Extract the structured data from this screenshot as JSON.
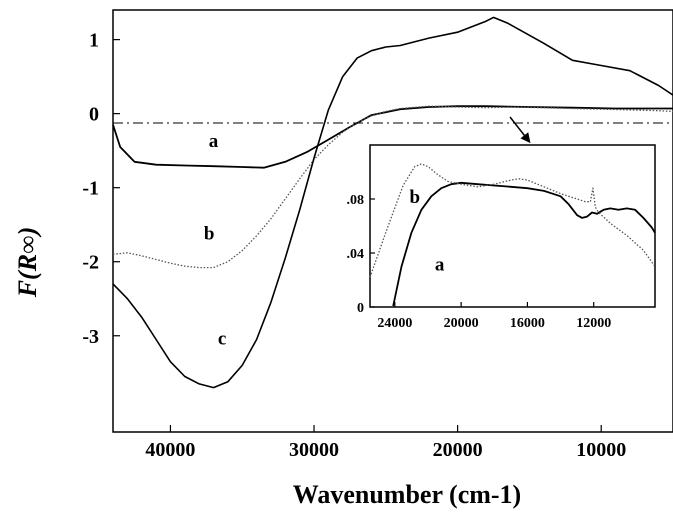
{
  "chart_data": [
    {
      "type": "line",
      "title": "",
      "xlabel": "Wavenumber (cm-1)",
      "ylabel": "F(R∞)",
      "xlim": [
        44000,
        5000
      ],
      "ylim": [
        -4.3,
        1.4
      ],
      "x_reversed": true,
      "xticks": [
        {
          "value": 40000,
          "label": "40000"
        },
        {
          "value": 30000,
          "label": "30000"
        },
        {
          "value": 20000,
          "label": "20000"
        },
        {
          "value": 10000,
          "label": "10000"
        }
      ],
      "yticks": [
        {
          "value": 1,
          "label": "1"
        },
        {
          "value": 0,
          "label": "0"
        },
        {
          "value": -1,
          "label": "-1"
        },
        {
          "value": -2,
          "label": "-2"
        },
        {
          "value": -3,
          "label": "-3"
        }
      ],
      "reference_line": {
        "y": 0,
        "style": "dash-dot"
      },
      "series": [
        {
          "name": "a",
          "style": "solid",
          "color": "#000000",
          "x": [
            44000,
            43500,
            42500,
            41000,
            39000,
            37000,
            35000,
            33500,
            32000,
            30500,
            29000,
            27500,
            26000,
            24000,
            22000,
            20000,
            18000,
            15000,
            12000,
            9000,
            6000,
            5000
          ],
          "y": [
            -0.15,
            -0.45,
            -0.65,
            -0.69,
            -0.7,
            -0.71,
            -0.72,
            -0.73,
            -0.65,
            -0.52,
            -0.35,
            -0.18,
            -0.02,
            0.06,
            0.09,
            0.1,
            0.1,
            0.09,
            0.08,
            0.07,
            0.07,
            0.07
          ]
        },
        {
          "name": "b",
          "style": "dotted",
          "color": "#555555",
          "x": [
            44000,
            43000,
            42000,
            41000,
            40000,
            39000,
            38000,
            37000,
            36000,
            35000,
            34000,
            33000,
            32000,
            31000,
            30000,
            29000,
            28000,
            27000,
            26000,
            25000,
            24000,
            22000,
            20000,
            18000,
            16000,
            14000,
            12000,
            10000,
            8000,
            6000,
            5000
          ],
          "y": [
            -1.9,
            -1.88,
            -1.92,
            -1.97,
            -2.02,
            -2.06,
            -2.08,
            -2.08,
            -2.0,
            -1.85,
            -1.65,
            -1.42,
            -1.15,
            -0.88,
            -0.62,
            -0.42,
            -0.25,
            -0.12,
            -0.03,
            0.03,
            0.07,
            0.1,
            0.09,
            0.08,
            0.09,
            0.08,
            0.07,
            0.06,
            0.05,
            0.04,
            0.03
          ]
        },
        {
          "name": "c",
          "style": "solid-noisy",
          "color": "#000000",
          "x": [
            44000,
            43000,
            42000,
            41000,
            40000,
            39000,
            38000,
            37000,
            36000,
            35000,
            34000,
            33000,
            32000,
            31000,
            30000,
            29000,
            28000,
            27000,
            26000,
            25000,
            24000,
            22000,
            20000,
            18000,
            17500,
            16500,
            14000,
            12000,
            10000,
            8000,
            6000,
            5000
          ],
          "y": [
            -2.3,
            -2.5,
            -2.75,
            -3.05,
            -3.35,
            -3.55,
            -3.65,
            -3.7,
            -3.62,
            -3.4,
            -3.05,
            -2.55,
            -1.95,
            -1.3,
            -0.6,
            0.05,
            0.5,
            0.75,
            0.85,
            0.9,
            0.92,
            1.02,
            1.1,
            1.25,
            1.3,
            1.22,
            0.95,
            0.72,
            0.65,
            0.58,
            0.38,
            0.25
          ]
        }
      ],
      "series_labels": [
        {
          "text": "a",
          "x": 37000,
          "y": -0.45
        },
        {
          "text": "b",
          "x": 37300,
          "y": -1.7
        },
        {
          "text": "c",
          "x": 36400,
          "y": -3.12
        }
      ]
    },
    {
      "type": "line",
      "title": "",
      "inset": true,
      "xlim": [
        25500,
        8300
      ],
      "ylim": [
        0,
        0.12
      ],
      "x_reversed": true,
      "xticks": [
        {
          "value": 24000,
          "label": "24000"
        },
        {
          "value": 20000,
          "label": "20000"
        },
        {
          "value": 16000,
          "label": "16000"
        },
        {
          "value": 12000,
          "label": "12000"
        }
      ],
      "yticks": [
        {
          "value": 0,
          "label": "0"
        },
        {
          "value": 0.04,
          "label": ".04"
        },
        {
          "value": 0.08,
          "label": ".08"
        }
      ],
      "series": [
        {
          "name": "a",
          "style": "solid",
          "color": "#000000",
          "x": [
            24100,
            23600,
            23000,
            22400,
            21800,
            21200,
            20600,
            20000,
            19000,
            18000,
            17000,
            16000,
            15000,
            14000,
            13500,
            13000,
            12700,
            12400,
            12100,
            11800,
            11400,
            11000,
            10500,
            10000,
            9500,
            9000,
            8500,
            8300
          ],
          "y": [
            0.0,
            0.03,
            0.055,
            0.072,
            0.082,
            0.088,
            0.091,
            0.092,
            0.091,
            0.09,
            0.089,
            0.088,
            0.086,
            0.082,
            0.076,
            0.068,
            0.066,
            0.067,
            0.07,
            0.069,
            0.072,
            0.073,
            0.072,
            0.073,
            0.072,
            0.066,
            0.059,
            0.055
          ]
        },
        {
          "name": "b",
          "style": "dotted",
          "color": "#555555",
          "x": [
            25500,
            24500,
            23500,
            22800,
            22400,
            22000,
            21400,
            20800,
            20000,
            19000,
            18000,
            17000,
            16500,
            16000,
            15000,
            14000,
            13000,
            12500,
            12200,
            12050,
            11900,
            11700,
            11000,
            10000,
            9000,
            8300
          ],
          "y": [
            0.022,
            0.057,
            0.09,
            0.104,
            0.106,
            0.104,
            0.098,
            0.093,
            0.091,
            0.089,
            0.091,
            0.094,
            0.095,
            0.094,
            0.089,
            0.084,
            0.08,
            0.078,
            0.078,
            0.088,
            0.074,
            0.07,
            0.062,
            0.053,
            0.042,
            0.03
          ]
        }
      ],
      "series_labels": [
        {
          "text": "b",
          "x": 22800,
          "y": 0.077
        },
        {
          "text": "a",
          "x": 21300,
          "y": 0.027
        }
      ]
    }
  ]
}
